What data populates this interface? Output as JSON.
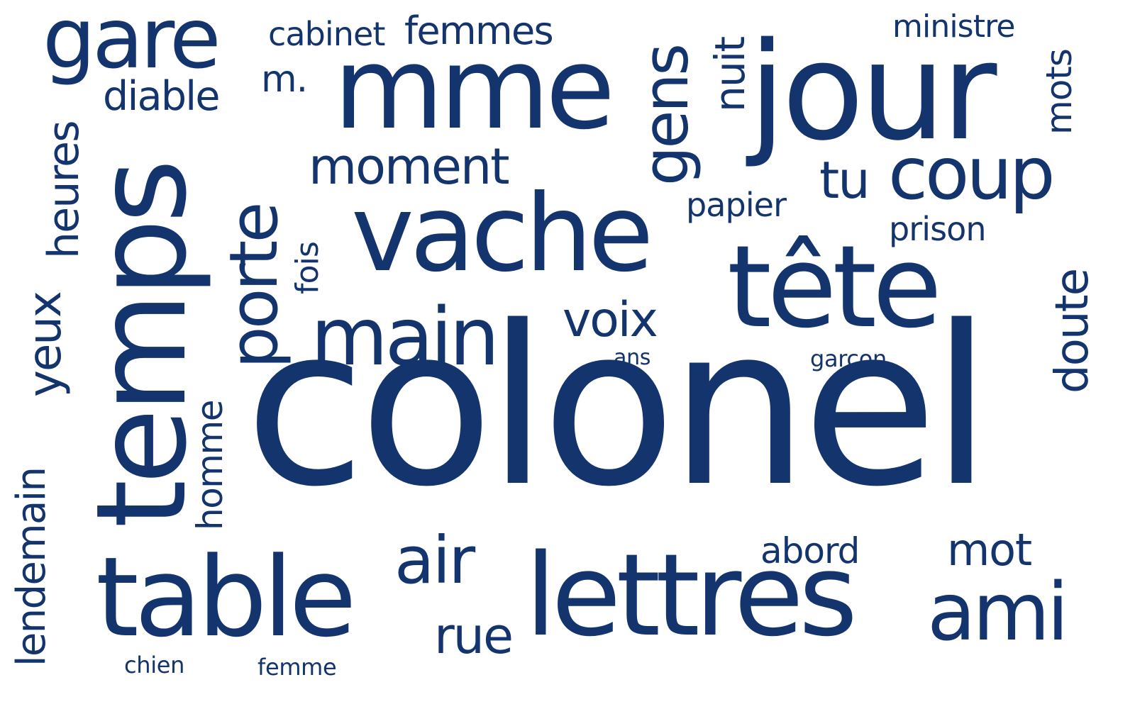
{
  "color": "#14346e",
  "background": "#ffffff",
  "words": {
    "colonel": "colonel",
    "jour": "jour",
    "mme": "mme",
    "vache": "vache",
    "tete": "tête",
    "lettres": "lettres",
    "temps": "temps",
    "table": "table",
    "gare": "gare",
    "porte": "porte",
    "main": "main",
    "coup": "coup",
    "ami": "ami",
    "gens": "gens",
    "air": "air",
    "moment": "moment",
    "voix": "voix",
    "femmes": "femmes",
    "heures": "heures",
    "yeux": "yeux",
    "lendemain": "lendemain",
    "homme": "homme",
    "doute": "doute",
    "mot": "mot",
    "rue": "rue",
    "tu": "tu",
    "diable": "diable",
    "cabinet": "cabinet",
    "ministre": "ministre",
    "mots": "mots",
    "nuit": "nuit",
    "m": "m.",
    "papier": "papier",
    "prison": "prison",
    "fois": "fois",
    "abord": "abord",
    "ans": "ans",
    "garcon": "garçon",
    "chien": "chien",
    "femme": "femme"
  }
}
